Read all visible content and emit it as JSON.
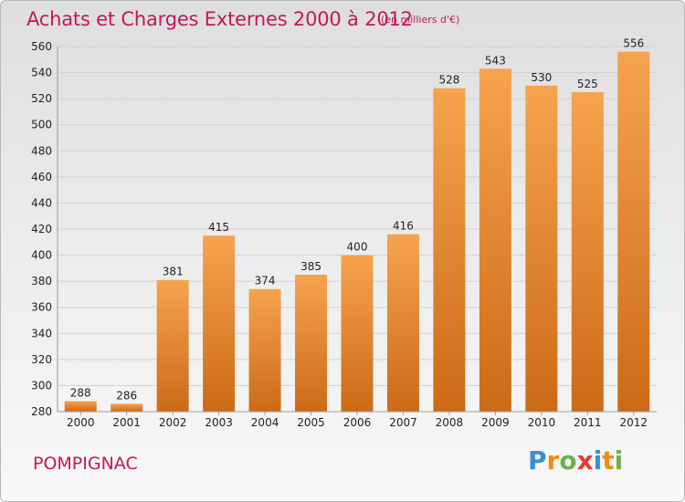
{
  "header": {
    "title": "Achats et Charges Externes 2000 à 2012",
    "subtitle": "(en milliers d'€)"
  },
  "footer": {
    "commune": "POMPIGNAC",
    "brand": "Proxiti",
    "brand_letters": [
      {
        "char": "P",
        "color": "#3a8fd6"
      },
      {
        "char": "r",
        "color": "#f08a1c"
      },
      {
        "char": "o",
        "color": "#6ab04c"
      },
      {
        "char": "x",
        "color": "#e53935"
      },
      {
        "char": "i",
        "color": "#3a8fd6"
      },
      {
        "char": "t",
        "color": "#f08a1c"
      },
      {
        "char": "i",
        "color": "#6ab04c"
      }
    ]
  },
  "colors": {
    "accent": "#c2185b",
    "bar_top": "#f6a34e",
    "bar_bottom": "#cc6a17",
    "grid": "#d0d0d0",
    "axis_text": "#222222"
  },
  "chart_data": {
    "type": "bar",
    "categories": [
      "2000",
      "2001",
      "2002",
      "2003",
      "2004",
      "2005",
      "2006",
      "2007",
      "2008",
      "2009",
      "2010",
      "2011",
      "2012"
    ],
    "values": [
      288,
      286,
      381,
      415,
      374,
      385,
      400,
      416,
      528,
      543,
      530,
      525,
      556
    ],
    "title": "Achats et Charges Externes 2000 à 2012",
    "subtitle": "(en milliers d'€)",
    "xlabel": "",
    "ylabel": "",
    "ylim": [
      280,
      560
    ],
    "yticks": [
      280,
      300,
      320,
      340,
      360,
      380,
      400,
      420,
      440,
      460,
      480,
      500,
      520,
      540,
      560
    ],
    "grid": true,
    "data_labels": true
  }
}
